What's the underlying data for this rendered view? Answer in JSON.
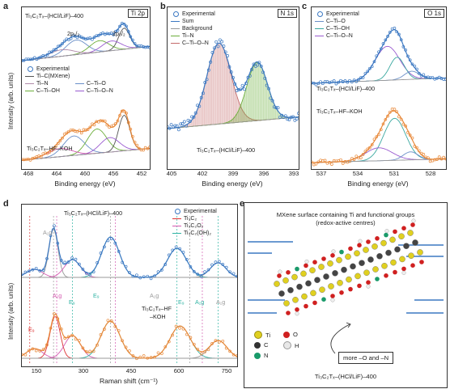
{
  "colors": {
    "blue": "#3b78c2",
    "orange": "#e8893a",
    "grey": "#9a9a9a",
    "green": "#6cae3a",
    "purple": "#9a5bd0",
    "pink": "#d45ab0",
    "red": "#d33",
    "teal": "#2eb3a3"
  },
  "panels": {
    "a": {
      "letter": "a",
      "tag": "Ti 2p",
      "top_label": "Ti₃C₂Tₓ–(HCl/LiF)–400",
      "bottom_label": "Ti₃C₂Tₓ–HF–KOH",
      "p12": "2p₁/₂",
      "p32": "2p₃/₂",
      "legend": [
        "Experimental",
        "Ti–C(MXene)",
        "Ti–N",
        "C–Ti–O",
        "C–Ti–OH",
        "C–Ti–O–N"
      ],
      "ylabel": "Intensity (arb. units)",
      "xlabel": "Binding energy (eV)",
      "ticks": [
        "468",
        "464",
        "460",
        "456",
        "452"
      ]
    },
    "b": {
      "letter": "b",
      "tag": "N 1s",
      "label": "Ti₃C₂Tₓ–(HCl/LiF)–400",
      "legend": [
        "Experimental",
        "Sum",
        "Background",
        "Ti–N",
        "C–Ti–O–N"
      ],
      "xlabel": "Binding energy (eV)",
      "ticks": [
        "405",
        "402",
        "399",
        "396",
        "393"
      ]
    },
    "c": {
      "letter": "c",
      "tag": "O 1s",
      "top_label": "Ti₃C₂Tₓ–(HCl/LiF)–400",
      "bottom_label": "Ti₃C₂Tₓ–HF–KOH",
      "legend": [
        "Experimental",
        "C–Ti–O",
        "C–Ti–OH",
        "C–Ti–O–N"
      ],
      "xlabel": "Binding energy (eV)",
      "ticks": [
        "537",
        "534",
        "531",
        "528"
      ]
    },
    "d": {
      "letter": "d",
      "top_label": "Ti₃C₂Tₓ–(HCl/LiF)–400",
      "bottom_label_1": "Ti₃C₂Tₓ–HF",
      "bottom_label_2": "–KOH",
      "legend": [
        "Experimental",
        "Ti₃C₂",
        "Ti₃C₂O₂",
        "Ti₃C₂(OH)₂"
      ],
      "ylabel": "Intensity (arb. units)",
      "xlabel": "Raman shift (cm⁻¹)",
      "ticks": [
        "150",
        "300",
        "450",
        "600",
        "750"
      ],
      "modes": [
        "A₁g",
        "E₉",
        "A₁g",
        "E₉",
        "E₉",
        "A₁g",
        "E₉",
        "A₁g",
        "A₁g"
      ]
    },
    "e": {
      "letter": "e",
      "caption_1": "MXene surface containing Ti and functional groups",
      "caption_2": "(redox-active centres)",
      "atoms": [
        {
          "sym": "Ti",
          "color": "#e0d020"
        },
        {
          "sym": "O",
          "color": "#d02020"
        },
        {
          "sym": "C",
          "color": "#333333"
        },
        {
          "sym": "H",
          "color": "#e8e8e8"
        },
        {
          "sym": "N",
          "color": "#1a9a6a"
        }
      ],
      "more": "more –O and –N",
      "bottom": "Ti₃C₂Tₓ–(HCl/LiF)–400"
    }
  },
  "chart_data": [
    {
      "type": "line",
      "title": "Ti 2p",
      "xlabel": "Binding energy (eV)",
      "ylabel": "Intensity (arb. units)",
      "xlim": [
        468,
        452
      ],
      "series": [
        {
          "name": "Ti₃C₂Tₓ–(HCl/LiF)–400",
          "peaks_eV": [
            461.0,
            458.0,
            455.2
          ]
        },
        {
          "name": "Ti₃C₂Tₓ–HF–KOH",
          "peaks_eV": [
            461.3,
            458.5,
            455.2
          ]
        }
      ]
    },
    {
      "type": "line",
      "title": "N 1s",
      "xlabel": "Binding energy (eV)",
      "xlim": [
        405,
        393
      ],
      "series": [
        {
          "name": "Ti–N",
          "center_eV": 396.8
        },
        {
          "name": "C–Ti–O–N",
          "center_eV": 400.3
        }
      ]
    },
    {
      "type": "line",
      "title": "O 1s",
      "xlabel": "Binding energy (eV)",
      "xlim": [
        538,
        527
      ],
      "series": [
        {
          "name": "Ti₃C₂Tₓ–(HCl/LiF)–400",
          "center_eV": 531.6
        },
        {
          "name": "Ti₃C₂Tₓ–HF–KOH",
          "center_eV": 531.0
        }
      ]
    },
    {
      "type": "line",
      "xlabel": "Raman shift (cm⁻¹)",
      "ylabel": "Intensity (arb. units)",
      "xlim": [
        100,
        780
      ],
      "series": [
        {
          "name": "Ti₃C₂Tₓ–(HCl/LiF)–400",
          "peaks_cm": [
            200,
            380,
            590,
            720
          ]
        },
        {
          "name": "Ti₃C₂Tₓ–HF–KOH",
          "peaks_cm": [
            205,
            380,
            600,
            720
          ]
        }
      ]
    }
  ]
}
